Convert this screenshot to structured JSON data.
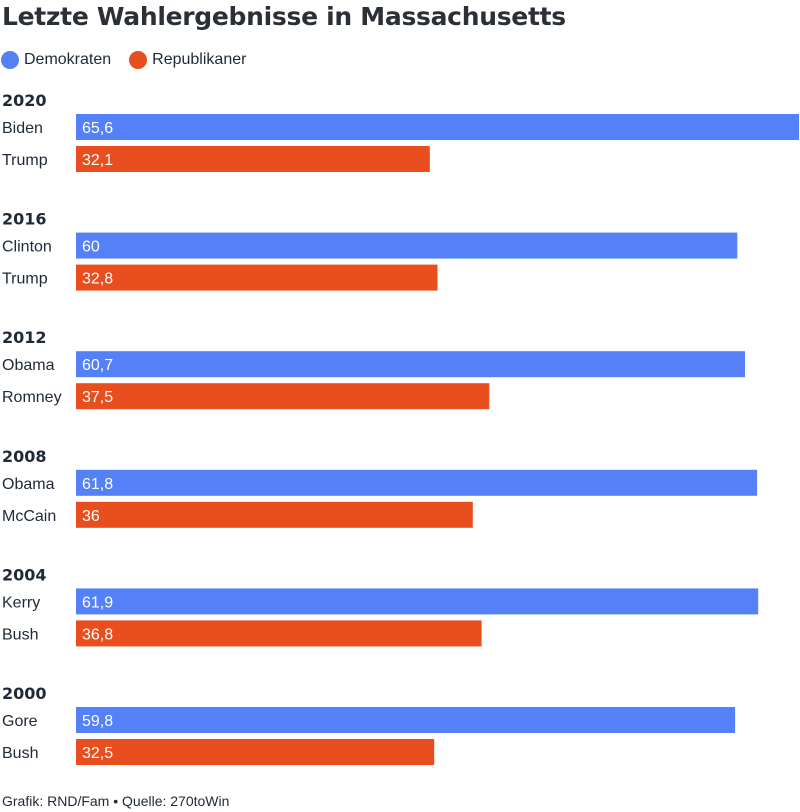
{
  "title": "Letzte Wahlergebnisse in Massachusetts",
  "footer": "Grafik: RND/Fam • Quelle: 270toWin",
  "legend": [
    {
      "label": "Demokraten",
      "color": "#5481f7"
    },
    {
      "label": "Republikaner",
      "color": "#e84e1e"
    }
  ],
  "chart_data": {
    "type": "bar",
    "orientation": "horizontal",
    "grid": false,
    "legend_position": "top-left",
    "xlim": [
      0,
      65.6
    ],
    "series": [
      {
        "name": "Demokraten",
        "color": "#5481f7"
      },
      {
        "name": "Republikaner",
        "color": "#e84e1e"
      }
    ],
    "groups": [
      {
        "year": "2020",
        "rows": [
          {
            "candidate": "Biden",
            "value": 65.6,
            "label": "65,6",
            "series": "Demokraten"
          },
          {
            "candidate": "Trump",
            "value": 32.1,
            "label": "32,1",
            "series": "Republikaner"
          }
        ]
      },
      {
        "year": "2016",
        "rows": [
          {
            "candidate": "Clinton",
            "value": 60,
            "label": "60",
            "series": "Demokraten"
          },
          {
            "candidate": "Trump",
            "value": 32.8,
            "label": "32,8",
            "series": "Republikaner"
          }
        ]
      },
      {
        "year": "2012",
        "rows": [
          {
            "candidate": "Obama",
            "value": 60.7,
            "label": "60,7",
            "series": "Demokraten"
          },
          {
            "candidate": "Romney",
            "value": 37.5,
            "label": "37,5",
            "series": "Republikaner"
          }
        ]
      },
      {
        "year": "2008",
        "rows": [
          {
            "candidate": "Obama",
            "value": 61.8,
            "label": "61,8",
            "series": "Demokraten"
          },
          {
            "candidate": "McCain",
            "value": 36,
            "label": "36",
            "series": "Republikaner"
          }
        ]
      },
      {
        "year": "2004",
        "rows": [
          {
            "candidate": "Kerry",
            "value": 61.9,
            "label": "61,9",
            "series": "Demokraten"
          },
          {
            "candidate": "Bush",
            "value": 36.8,
            "label": "36,8",
            "series": "Republikaner"
          }
        ]
      },
      {
        "year": "2000",
        "rows": [
          {
            "candidate": "Gore",
            "value": 59.8,
            "label": "59,8",
            "series": "Demokraten"
          },
          {
            "candidate": "Bush",
            "value": 32.5,
            "label": "32,5",
            "series": "Republikaner"
          }
        ]
      }
    ]
  }
}
